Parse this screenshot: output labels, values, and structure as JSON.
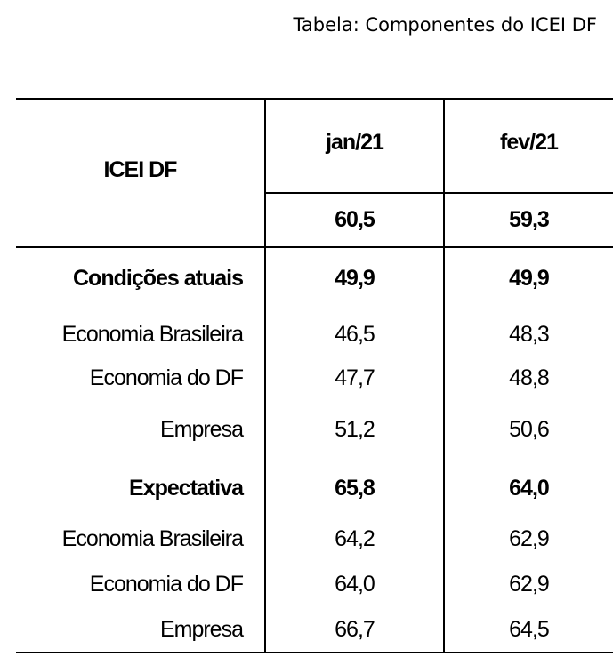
{
  "title": "Tabela: Componentes do ICEI DF",
  "header": {
    "label": "ICEI DF",
    "columns": [
      "jan/21",
      "fev/21"
    ],
    "totals": [
      "60,5",
      "59,3"
    ]
  },
  "rows": [
    {
      "label": "Condições atuais",
      "values": [
        "49,9",
        "49,9"
      ],
      "bold": true
    },
    {
      "label": "Economia Brasileira",
      "values": [
        "46,5",
        "48,3"
      ],
      "bold": false
    },
    {
      "label": "Economia do DF",
      "values": [
        "47,7",
        "48,8"
      ],
      "bold": false
    },
    {
      "label": "Empresa",
      "values": [
        "51,2",
        "50,6"
      ],
      "bold": false
    },
    {
      "label": "Expectativa",
      "values": [
        "65,8",
        "64,0"
      ],
      "bold": true
    },
    {
      "label": "Economia Brasileira",
      "values": [
        "64,2",
        "62,9"
      ],
      "bold": false
    },
    {
      "label": "Economia do DF",
      "values": [
        "64,0",
        "62,9"
      ],
      "bold": false
    },
    {
      "label": "Empresa",
      "values": [
        "66,7",
        "64,5"
      ],
      "bold": false
    }
  ]
}
